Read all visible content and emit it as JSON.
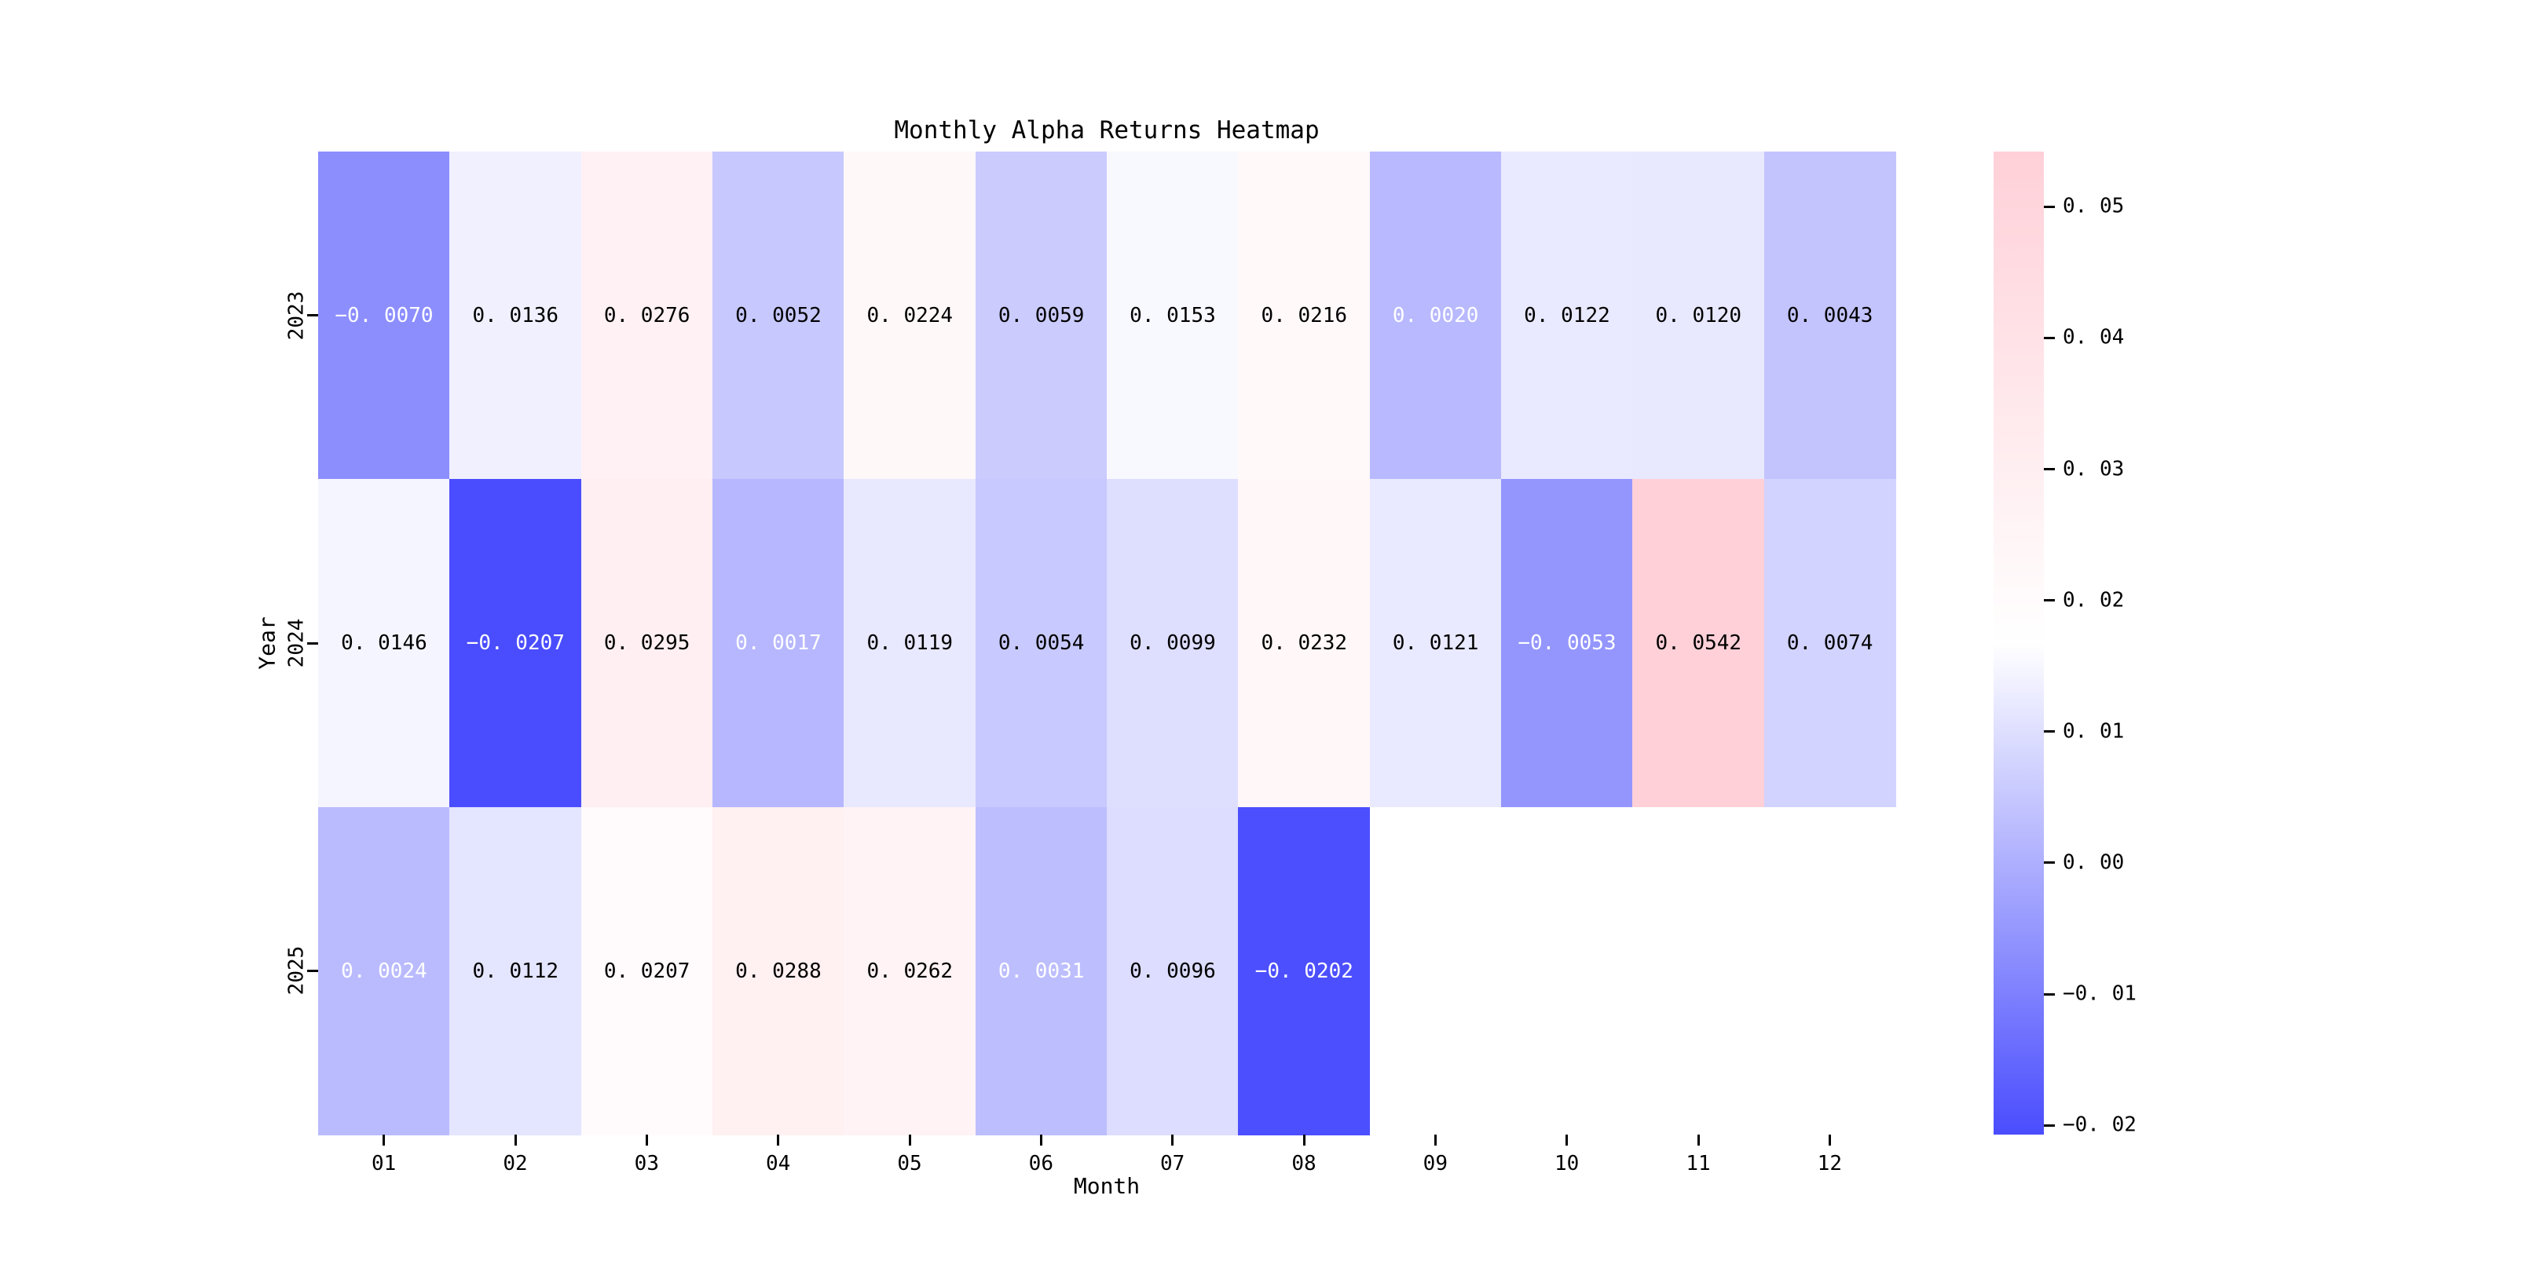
{
  "figure": {
    "background": "#ffffff"
  },
  "chart_data": {
    "type": "heatmap",
    "title": "Monthly Alpha Returns Heatmap",
    "xlabel": "Month",
    "ylabel": "Year",
    "x_categories": [
      "01",
      "02",
      "03",
      "04",
      "05",
      "06",
      "07",
      "08",
      "09",
      "10",
      "11",
      "12"
    ],
    "y_categories": [
      "2023",
      "2024",
      "2025"
    ],
    "series": [
      {
        "name": "2023",
        "values": [
          -0.007,
          0.0136,
          0.0276,
          0.0052,
          0.0224,
          0.0059,
          0.0153,
          0.0216,
          0.002,
          0.0122,
          0.012,
          0.0043
        ]
      },
      {
        "name": "2024",
        "values": [
          0.0146,
          -0.0207,
          0.0295,
          0.0017,
          0.0119,
          0.0054,
          0.0099,
          0.0232,
          0.0121,
          -0.0053,
          0.0542,
          0.0074
        ]
      },
      {
        "name": "2025",
        "values": [
          0.0024,
          0.0112,
          0.0207,
          0.0288,
          0.0262,
          0.0031,
          0.0096,
          -0.0202,
          null,
          null,
          null,
          null
        ]
      }
    ],
    "vmin": -0.0207,
    "vmax": 0.0542,
    "annotation_decimals": 4,
    "colormap": {
      "low": "#4A4DFD",
      "mid": "#FFFFFF",
      "high": "#FFD0D8",
      "annot_dark": "#000000",
      "annot_light": "#FFFFFF"
    },
    "colorbar": {
      "ticks": [
        {
          "value": 0.05,
          "label": "0.05"
        },
        {
          "value": 0.04,
          "label": "0.04"
        },
        {
          "value": 0.03,
          "label": "0.03"
        },
        {
          "value": 0.02,
          "label": "0.02"
        },
        {
          "value": 0.01,
          "label": "0.01"
        },
        {
          "value": 0.0,
          "label": "0.00"
        },
        {
          "value": -0.01,
          "label": "-0.01"
        },
        {
          "value": -0.02,
          "label": "-0.02"
        }
      ]
    },
    "legend_position": "right",
    "grid": false
  }
}
